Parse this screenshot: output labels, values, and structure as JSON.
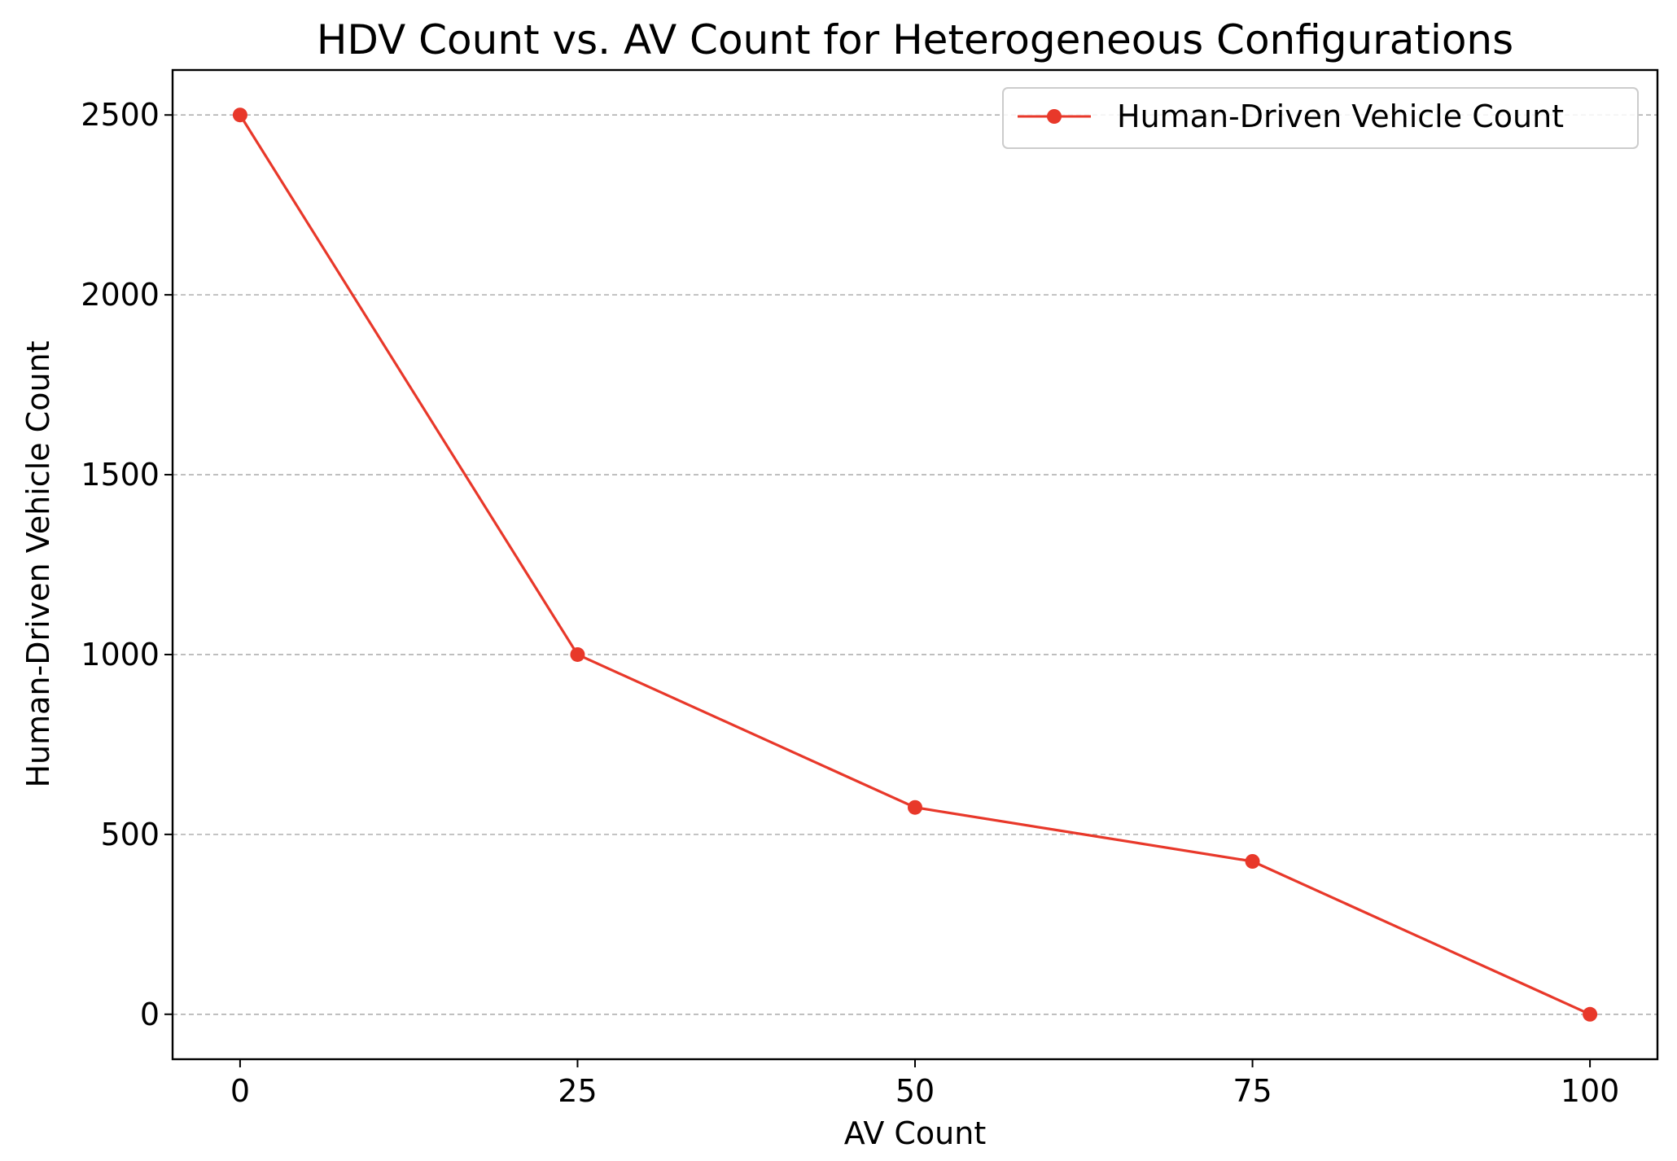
{
  "chart_data": {
    "type": "line",
    "title": "HDV Count vs. AV Count for Heterogeneous Configurations",
    "xlabel": "AV Count",
    "ylabel": "Human-Driven Vehicle Count",
    "xlim": [
      -5,
      105
    ],
    "ylim": [
      -125,
      2625
    ],
    "xticks": [
      0,
      25,
      50,
      75,
      100
    ],
    "xtick_labels": [
      "0",
      "25",
      "50",
      "75",
      "100"
    ],
    "yticks": [
      0,
      500,
      1000,
      1500,
      2000,
      2500
    ],
    "ytick_labels": [
      "0",
      "500",
      "1000",
      "1500",
      "2000",
      "2500"
    ],
    "grid": "horizontal dashed",
    "legend_position": "upper right",
    "series": [
      {
        "name": "Human-Driven Vehicle Count",
        "color": "#e8382a",
        "marker": "circle",
        "x": [
          0,
          25,
          50,
          75,
          100
        ],
        "y": [
          2500,
          1000,
          575,
          425,
          0
        ]
      }
    ]
  }
}
